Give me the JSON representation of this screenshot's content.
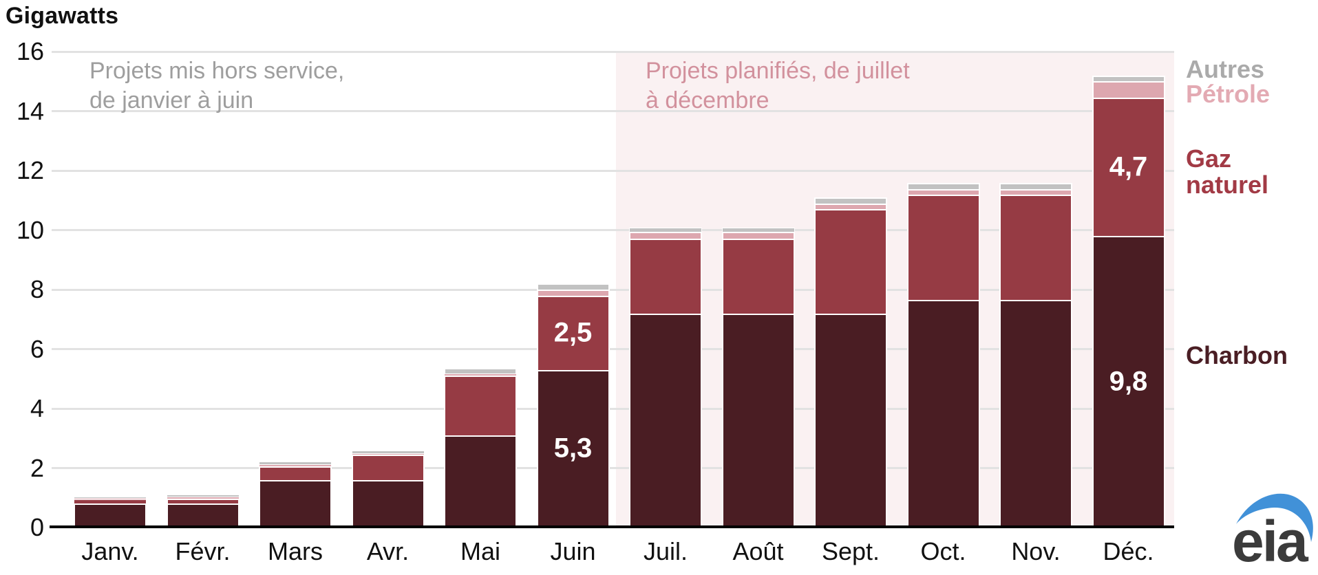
{
  "title": "Gigawatts",
  "annotations": {
    "retired": {
      "text": "Projets mis hors service,\nde janvier à juin",
      "color": "#9e9e9e"
    },
    "planned": {
      "text": "Projets planifiés, de juillet\nà décembre",
      "color": "#d2919d"
    }
  },
  "legend": {
    "autres": {
      "label": "Autres",
      "color": "#aaaaaa"
    },
    "petrole": {
      "label": "Pétrole",
      "color": "#e3aab3"
    },
    "gaz": {
      "label": "Gaz\nnaturel",
      "color": "#a23a45"
    },
    "charbon": {
      "label": "Charbon",
      "color": "#4a1e24"
    }
  },
  "logo": {
    "text": "eia"
  },
  "chart_data": {
    "type": "bar",
    "stacked": true,
    "title": "Gigawatts",
    "ylabel": "Gigawatts",
    "ylim": [
      0,
      16
    ],
    "yticks": [
      0,
      2,
      4,
      6,
      8,
      10,
      12,
      14,
      16
    ],
    "grid": true,
    "categories": [
      "Janv.",
      "Févr.",
      "Mars",
      "Avr.",
      "Mai",
      "Juin",
      "Juil.",
      "Août",
      "Sept.",
      "Oct.",
      "Nov.",
      "Déc."
    ],
    "series": [
      {
        "name": "Charbon",
        "color": "#4a1d23",
        "values": [
          0.8,
          0.8,
          1.6,
          1.6,
          3.1,
          5.3,
          7.2,
          7.2,
          7.2,
          7.65,
          7.65,
          9.8
        ]
      },
      {
        "name": "Gaz naturel",
        "color": "#963b44",
        "values": [
          0.15,
          0.18,
          0.45,
          0.85,
          2.0,
          2.5,
          2.5,
          2.5,
          3.5,
          3.55,
          3.55,
          4.65
        ]
      },
      {
        "name": "Pétrole",
        "color": "#dda7af",
        "values": [
          0.05,
          0.05,
          0.08,
          0.05,
          0.08,
          0.2,
          0.25,
          0.25,
          0.2,
          0.18,
          0.18,
          0.55
        ]
      },
      {
        "name": "Autres",
        "color": "#c2c2c2",
        "values": [
          0.03,
          0.08,
          0.08,
          0.08,
          0.18,
          0.2,
          0.12,
          0.12,
          0.2,
          0.2,
          0.2,
          0.2
        ]
      }
    ],
    "bar_labels": [
      {
        "category": "Juin",
        "series": "Gaz naturel",
        "text": "2,5"
      },
      {
        "category": "Juin",
        "series": "Charbon",
        "text": "5,3"
      },
      {
        "category": "Déc.",
        "series": "Gaz naturel",
        "text": "4,7"
      },
      {
        "category": "Déc.",
        "series": "Charbon",
        "text": "9,8"
      }
    ],
    "highlight_region": {
      "from_category": "Juil.",
      "to_category": "Déc.",
      "color": "#faf1f2"
    }
  }
}
